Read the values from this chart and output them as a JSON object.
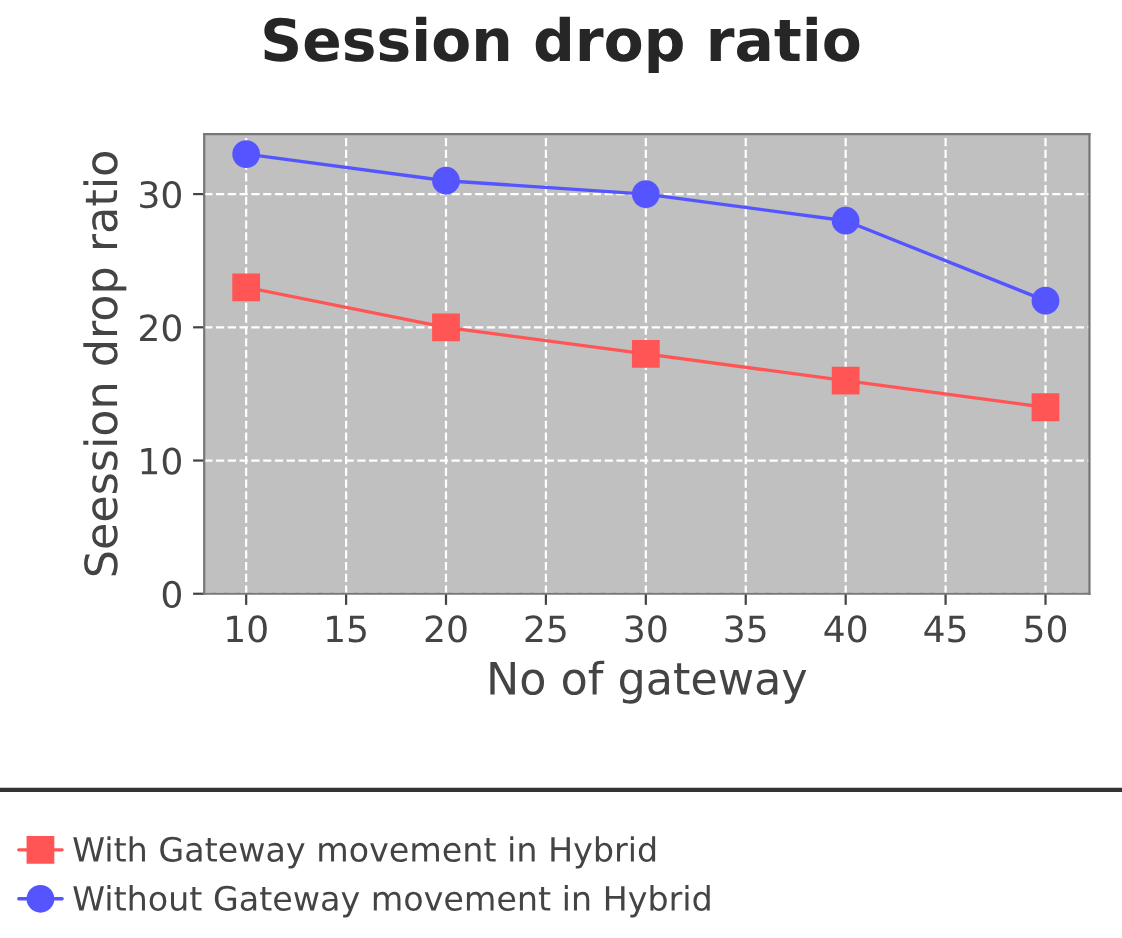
{
  "chart_data": {
    "type": "line",
    "title": "Session drop ratio",
    "xlabel": "No of gateway",
    "ylabel": "Seession drop ratio",
    "x": [
      10,
      20,
      30,
      40,
      50
    ],
    "series": [
      {
        "name": "With Gateway movement in Hybrid",
        "color": "#ff5555",
        "marker": "square",
        "values": [
          23,
          20,
          18,
          16,
          14
        ]
      },
      {
        "name": "Without Gateway movement in Hybrid",
        "color": "#5555ff",
        "marker": "circle",
        "values": [
          33,
          31,
          30,
          28,
          22
        ]
      }
    ],
    "xlim": [
      7.9,
      52.2
    ],
    "ylim": [
      0,
      34.5
    ],
    "xticks": [
      10,
      15,
      20,
      25,
      30,
      35,
      40,
      45,
      50
    ],
    "yticks": [
      0,
      10,
      20,
      30
    ],
    "grid": true,
    "legend": "bottom",
    "line_style": "solid"
  }
}
